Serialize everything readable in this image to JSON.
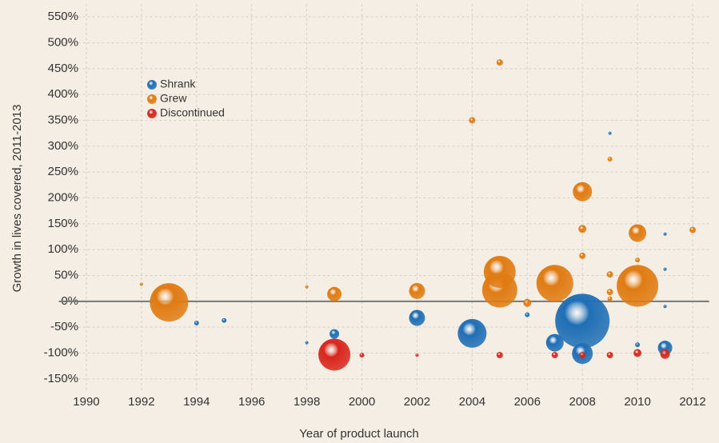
{
  "chart_data": {
    "type": "bubble",
    "x_label": "Year of product launch",
    "y_label": "Growth in lives covered, 2011-2013",
    "xlim": [
      1989,
      2012.6
    ],
    "ylim": [
      -175,
      575
    ],
    "xticks": [
      1990,
      1992,
      1994,
      1996,
      1998,
      2000,
      2002,
      2004,
      2006,
      2008,
      2010,
      2012
    ],
    "yticks": [
      {
        "value": -150,
        "label": "-150%"
      },
      {
        "value": -100,
        "label": "-100%"
      },
      {
        "value": -50,
        "label": "-50%"
      },
      {
        "value": 0,
        "label": "0%"
      },
      {
        "value": 50,
        "label": "50%"
      },
      {
        "value": 100,
        "label": "100%"
      },
      {
        "value": 150,
        "label": "150%"
      },
      {
        "value": 200,
        "label": "200%"
      },
      {
        "value": 250,
        "label": "250%"
      },
      {
        "value": 300,
        "label": "300%"
      },
      {
        "value": 350,
        "label": "350%"
      },
      {
        "value": 400,
        "label": "400%"
      },
      {
        "value": 450,
        "label": "450%"
      },
      {
        "value": 500,
        "label": "500%"
      },
      {
        "value": 550,
        "label": "550%"
      }
    ],
    "grid": true,
    "legend": "upper left",
    "series": [
      {
        "name": "Shrank",
        "color": "#1f6fb5",
        "x": [
          1994,
          1995,
          1998,
          1999,
          2002,
          2004,
          2006,
          2007,
          2008,
          2008,
          2009,
          2010,
          2011,
          2011,
          2011,
          2011
        ],
        "values": [
          -42,
          -37,
          -80,
          -63,
          -32,
          -62,
          -26,
          -80,
          -38,
          -101,
          325,
          -84,
          -90,
          130,
          62,
          -10
        ],
        "sizes": [
          3,
          3,
          2,
          6,
          10,
          18,
          3,
          11,
          34,
          13,
          2,
          3,
          9,
          2,
          2,
          2
        ]
      },
      {
        "name": "Grew",
        "color": "#e07b12",
        "x": [
          1993,
          1992,
          1998,
          1999,
          2002,
          2004,
          2005,
          2005,
          2005,
          2006,
          2007,
          2008,
          2008,
          2008,
          2009,
          2009,
          2009,
          2009,
          2010,
          2010,
          2010,
          2012
        ],
        "values": [
          -2,
          33,
          28,
          14,
          20,
          350,
          462,
          57,
          22,
          -3,
          35,
          212,
          140,
          88,
          275,
          52,
          18,
          5,
          132,
          80,
          30,
          138
        ],
        "sizes": [
          24,
          2,
          2,
          9,
          10,
          4,
          4,
          20,
          22,
          5,
          23,
          12,
          5,
          4,
          3,
          4,
          4,
          3,
          11,
          3,
          26,
          4
        ]
      },
      {
        "name": "Discontinued",
        "color": "#d9261c",
        "x": [
          1999,
          2000,
          2002,
          2005,
          2007,
          2008,
          2009,
          2010,
          2011
        ],
        "values": [
          -103,
          -104,
          -104,
          -104,
          -104,
          -104,
          -104,
          -100,
          -102
        ],
        "sizes": [
          20,
          3,
          2,
          4,
          4,
          4,
          4,
          5,
          6
        ]
      }
    ]
  }
}
